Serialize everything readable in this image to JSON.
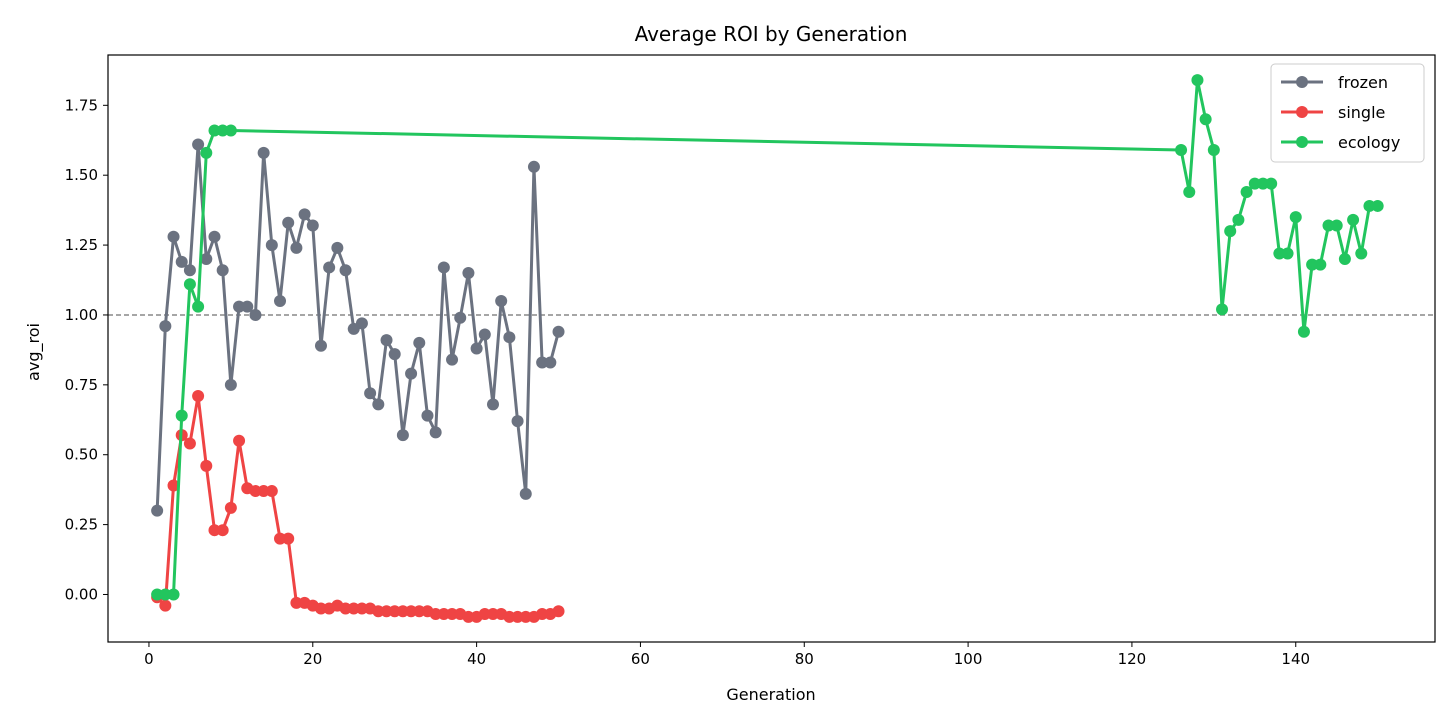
{
  "chart_data": {
    "type": "line",
    "title": "Average ROI by Generation",
    "xlabel": "Generation",
    "ylabel": "avg_roi",
    "xlim": [
      -5,
      157
    ],
    "ylim": [
      -0.17,
      1.93
    ],
    "xticks": [
      0,
      20,
      40,
      60,
      80,
      100,
      120,
      140
    ],
    "yticks": [
      0.0,
      0.25,
      0.5,
      0.75,
      1.0,
      1.25,
      1.5,
      1.75
    ],
    "ytick_labels": [
      "0.00",
      "0.25",
      "0.50",
      "0.75",
      "1.00",
      "1.25",
      "1.50",
      "1.75"
    ],
    "reference_line": {
      "y": 1.0,
      "style": "dashed",
      "color": "#888888"
    },
    "legend": {
      "placement": "top-right"
    },
    "grid": false,
    "series": [
      {
        "name": "frozen",
        "color": "#6b7280",
        "x": [
          1,
          2,
          3,
          4,
          5,
          6,
          7,
          8,
          9,
          10,
          11,
          12,
          13,
          14,
          15,
          16,
          17,
          18,
          19,
          20,
          21,
          22,
          23,
          24,
          25,
          26,
          27,
          28,
          29,
          30,
          31,
          32,
          33,
          34,
          35,
          36,
          37,
          38,
          39,
          40,
          41,
          42,
          43,
          44,
          45,
          46,
          47,
          48,
          49,
          50
        ],
        "y": [
          0.3,
          0.96,
          1.28,
          1.19,
          1.16,
          1.61,
          1.2,
          1.28,
          1.16,
          0.75,
          1.03,
          1.03,
          1.0,
          1.58,
          1.25,
          1.05,
          1.33,
          1.24,
          1.36,
          1.32,
          0.89,
          1.17,
          1.24,
          1.16,
          0.95,
          0.97,
          0.72,
          0.68,
          0.91,
          0.86,
          0.57,
          0.79,
          0.9,
          0.64,
          0.58,
          1.17,
          0.84,
          0.99,
          1.15,
          0.88,
          0.93,
          0.68,
          1.05,
          0.92,
          0.62,
          0.36,
          1.53,
          0.83,
          0.83,
          0.94
        ]
      },
      {
        "name": "single",
        "color": "#ef4444",
        "x": [
          1,
          2,
          3,
          4,
          5,
          6,
          7,
          8,
          9,
          10,
          11,
          12,
          13,
          14,
          15,
          16,
          17,
          18,
          19,
          20,
          21,
          22,
          23,
          24,
          25,
          26,
          27,
          28,
          29,
          30,
          31,
          32,
          33,
          34,
          35,
          36,
          37,
          38,
          39,
          40,
          41,
          42,
          43,
          44,
          45,
          46,
          47,
          48,
          49,
          50
        ],
        "y": [
          -0.01,
          -0.04,
          0.39,
          0.57,
          0.54,
          0.71,
          0.46,
          0.23,
          0.23,
          0.31,
          0.55,
          0.38,
          0.37,
          0.37,
          0.37,
          0.2,
          0.2,
          -0.03,
          -0.03,
          -0.04,
          -0.05,
          -0.05,
          -0.04,
          -0.05,
          -0.05,
          -0.05,
          -0.05,
          -0.06,
          -0.06,
          -0.06,
          -0.06,
          -0.06,
          -0.06,
          -0.06,
          -0.07,
          -0.07,
          -0.07,
          -0.07,
          -0.08,
          -0.08,
          -0.07,
          -0.07,
          -0.07,
          -0.08,
          -0.08,
          -0.08,
          -0.08,
          -0.07,
          -0.07,
          -0.06
        ]
      },
      {
        "name": "ecology",
        "color": "#22c55e",
        "x": [
          1,
          2,
          3,
          4,
          5,
          6,
          7,
          8,
          9,
          10,
          126,
          127,
          128,
          129,
          130,
          131,
          132,
          133,
          134,
          135,
          136,
          137,
          138,
          139,
          140,
          141,
          142,
          143,
          144,
          145,
          146,
          147,
          148,
          149,
          150
        ],
        "y": [
          0.0,
          0.0,
          0.0,
          0.64,
          1.11,
          1.03,
          1.58,
          1.66,
          1.66,
          1.66,
          1.59,
          1.44,
          1.84,
          1.7,
          1.59,
          1.02,
          1.3,
          1.34,
          1.44,
          1.47,
          1.47,
          1.47,
          1.22,
          1.22,
          1.35,
          0.94,
          1.18,
          1.18,
          1.32,
          1.32,
          1.2,
          1.34,
          1.22,
          1.39,
          1.39
        ]
      }
    ]
  }
}
